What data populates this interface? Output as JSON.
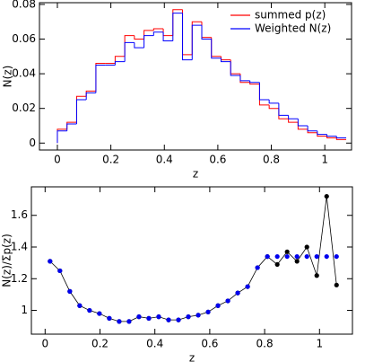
{
  "chart_data": [
    {
      "type": "histogram",
      "xlabel": "z",
      "ylabel": "N(z)",
      "bins": [
        0,
        0.036,
        0.072,
        0.108,
        0.144,
        0.18,
        0.216,
        0.252,
        0.288,
        0.324,
        0.36,
        0.396,
        0.432,
        0.468,
        0.504,
        0.54,
        0.576,
        0.612,
        0.648,
        0.684,
        0.72,
        0.756,
        0.792,
        0.828,
        0.864,
        0.9,
        0.936,
        0.972,
        1.008,
        1.044,
        1.08
      ],
      "series": [
        {
          "name": "summed p(z)",
          "color": "#ff0000",
          "values": [
            0.008,
            0.012,
            0.027,
            0.03,
            0.046,
            0.046,
            0.05,
            0.062,
            0.06,
            0.065,
            0.066,
            0.062,
            0.077,
            0.051,
            0.07,
            0.061,
            0.05,
            0.048,
            0.04,
            0.035,
            0.034,
            0.022,
            0.02,
            0.014,
            0.012,
            0.008,
            0.006,
            0.004,
            0.003,
            0.002
          ]
        },
        {
          "name": "Weighted N(z)",
          "color": "#0000ff",
          "values": [
            0.007,
            0.011,
            0.025,
            0.029,
            0.045,
            0.045,
            0.047,
            0.058,
            0.055,
            0.062,
            0.064,
            0.059,
            0.075,
            0.048,
            0.068,
            0.06,
            0.049,
            0.047,
            0.039,
            0.036,
            0.035,
            0.025,
            0.023,
            0.016,
            0.014,
            0.01,
            0.007,
            0.005,
            0.004,
            0.003
          ]
        }
      ],
      "xlim": [
        -0.067,
        1.1
      ],
      "xticks": [
        0,
        0.2,
        0.4,
        0.6,
        0.8,
        1
      ],
      "ylim": [
        -0.004,
        0.081
      ],
      "yticks": [
        0,
        0.02,
        0.04,
        0.06,
        0.08
      ],
      "legend": "upper right"
    },
    {
      "type": "line",
      "xlabel": "z",
      "ylabel": "N(z)/Σp(z)",
      "x": [
        0.018,
        0.054,
        0.09,
        0.126,
        0.162,
        0.198,
        0.234,
        0.27,
        0.306,
        0.342,
        0.378,
        0.414,
        0.45,
        0.486,
        0.522,
        0.558,
        0.594,
        0.63,
        0.666,
        0.702,
        0.738,
        0.774,
        0.81,
        0.846,
        0.882,
        0.918,
        0.954,
        0.99,
        1.026,
        1.062
      ],
      "series": [
        {
          "color": "#000000",
          "values": [
            1.31,
            1.25,
            1.12,
            1.03,
            1.0,
            0.98,
            0.95,
            0.93,
            0.93,
            0.96,
            0.95,
            0.96,
            0.94,
            0.94,
            0.96,
            0.97,
            0.99,
            1.03,
            1.06,
            1.11,
            1.15,
            1.27,
            1.34,
            1.29,
            1.37,
            1.31,
            1.4,
            1.22,
            1.72,
            1.16
          ]
        },
        {
          "color": "#0000ee",
          "markers_only": true,
          "values": [
            1.31,
            1.25,
            1.12,
            1.03,
            1.0,
            0.98,
            0.95,
            0.93,
            0.93,
            0.96,
            0.95,
            0.96,
            0.94,
            0.94,
            0.96,
            0.97,
            0.99,
            1.03,
            1.06,
            1.11,
            1.15,
            1.27,
            1.34,
            1.34,
            1.34,
            1.34,
            1.34,
            1.34,
            1.34,
            1.34
          ]
        }
      ],
      "xlim": [
        -0.05,
        1.12
      ],
      "xticks": [
        0,
        0.2,
        0.4,
        0.6,
        0.8,
        1
      ],
      "ylim": [
        0.85,
        1.78
      ],
      "yticks": [
        1,
        1.2,
        1.4,
        1.6
      ]
    }
  ]
}
